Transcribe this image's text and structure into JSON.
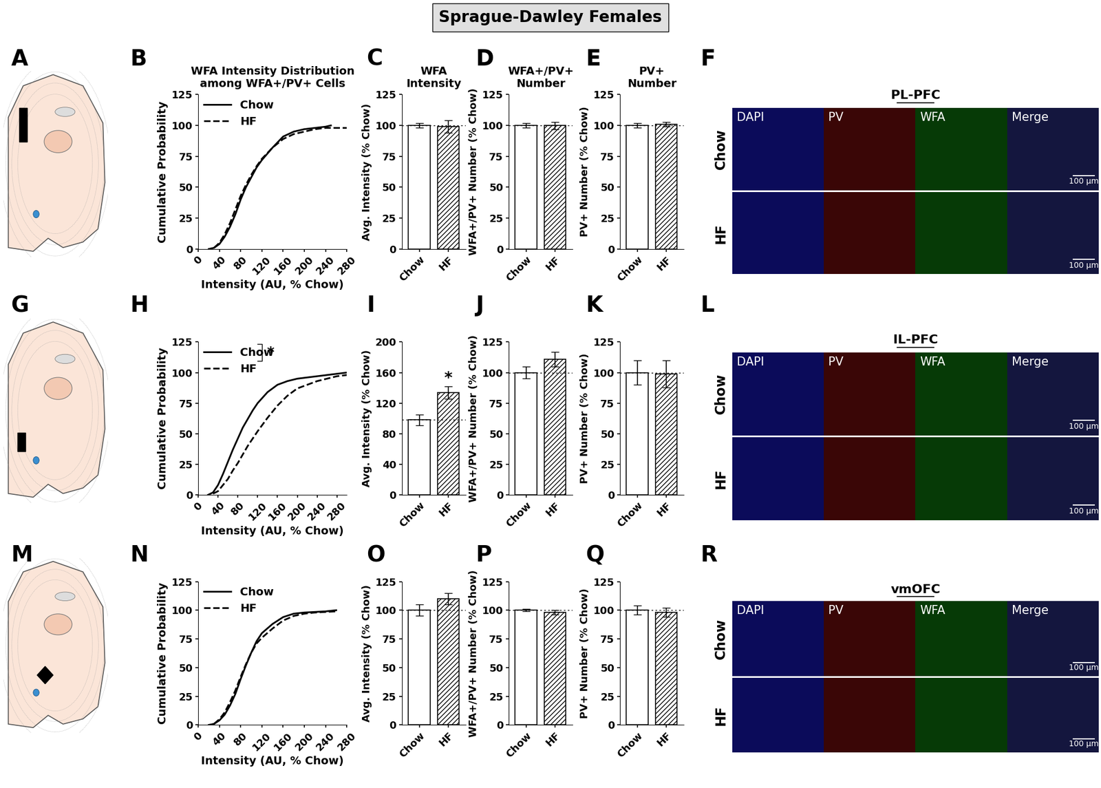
{
  "title": "Sprague-Dawley Females",
  "chart_data": [
    {
      "panel": "B",
      "type": "line",
      "title": "WFA Intensity Distribution\namong WFA+/PV+ Cells",
      "x_label": "Intensity (AU, % Chow)",
      "y_label": "Cumulative Probability",
      "xlim": [
        0,
        280
      ],
      "xticks": [
        0,
        40,
        80,
        120,
        160,
        200,
        240,
        280
      ],
      "ylim": [
        0,
        125
      ],
      "yticks": [
        0,
        25,
        50,
        75,
        100,
        125
      ],
      "legend": "upper left",
      "series": [
        {
          "name": "Chow",
          "color": "#000000",
          "line_style": "solid",
          "x": [
            20,
            30,
            40,
            50,
            60,
            70,
            80,
            90,
            100,
            110,
            120,
            140,
            160,
            180,
            200,
            220,
            240,
            250
          ],
          "values": [
            0,
            1,
            4,
            10,
            18,
            28,
            40,
            50,
            58,
            66,
            72,
            82,
            91,
            95,
            97,
            98,
            99,
            100
          ]
        },
        {
          "name": "HF",
          "color": "#000000",
          "line_style": "dashed",
          "x": [
            30,
            40,
            50,
            60,
            70,
            80,
            90,
            100,
            110,
            120,
            140,
            160,
            180,
            200,
            220,
            240,
            280
          ],
          "values": [
            1,
            5,
            12,
            21,
            32,
            43,
            52,
            60,
            67,
            73,
            82,
            89,
            93,
            95,
            97,
            98,
            98
          ]
        }
      ]
    },
    {
      "panel": "C",
      "type": "bar",
      "title": "WFA\nIntensity",
      "y_label": "Avg. Intensity (% Chow)",
      "categories": [
        "Chow",
        "HF"
      ],
      "values": [
        100,
        99
      ],
      "errors": [
        2,
        5
      ],
      "colors": [
        "#ffffff",
        "#ffffff"
      ],
      "ylim": [
        0,
        125
      ],
      "yticks": [
        0,
        25,
        50,
        75,
        100,
        125
      ],
      "reference_line": 100
    },
    {
      "panel": "D",
      "type": "bar",
      "title": "WFA+/PV+\nNumber",
      "y_label": "WFA+/PV+ Number (% Chow)",
      "categories": [
        "Chow",
        "HF"
      ],
      "values": [
        100,
        100
      ],
      "errors": [
        2,
        3
      ],
      "colors": [
        "#ffffff",
        "#ffffff"
      ],
      "ylim": [
        0,
        125
      ],
      "yticks": [
        0,
        25,
        50,
        75,
        100,
        125
      ],
      "reference_line": 100
    },
    {
      "panel": "E",
      "type": "bar",
      "title": "PV+\nNumber",
      "y_label": "PV+ Number (% Chow)",
      "categories": [
        "Chow",
        "HF"
      ],
      "values": [
        100,
        101
      ],
      "errors": [
        2,
        2
      ],
      "colors": [
        "#ffffff",
        "#ffffff"
      ],
      "ylim": [
        0,
        125
      ],
      "yticks": [
        0,
        25,
        50,
        75,
        100,
        125
      ],
      "reference_line": 100
    },
    {
      "panel": "H",
      "type": "line",
      "x_label": "Intensity (AU, % Chow)",
      "y_label": "Cumulative Probability",
      "xlim": [
        0,
        300
      ],
      "xticks": [
        0,
        40,
        80,
        120,
        160,
        200,
        240,
        280
      ],
      "ylim": [
        0,
        125
      ],
      "yticks": [
        0,
        25,
        50,
        75,
        100,
        125
      ],
      "legend": "upper left",
      "annotation": "*",
      "series": [
        {
          "name": "Chow",
          "color": "#000000",
          "line_style": "solid",
          "x": [
            20,
            30,
            40,
            50,
            60,
            70,
            80,
            90,
            100,
            110,
            120,
            140,
            160,
            180,
            200,
            240,
            280,
            300
          ],
          "values": [
            0,
            2,
            8,
            17,
            27,
            37,
            46,
            55,
            62,
            69,
            75,
            84,
            90,
            93,
            95,
            97,
            99,
            100
          ]
        },
        {
          "name": "HF",
          "color": "#000000",
          "line_style": "dashed",
          "x": [
            30,
            40,
            50,
            60,
            70,
            80,
            90,
            100,
            110,
            120,
            140,
            160,
            180,
            200,
            220,
            240,
            260,
            280,
            300
          ],
          "values": [
            1,
            3,
            8,
            13,
            20,
            26,
            33,
            40,
            46,
            52,
            63,
            73,
            81,
            87,
            90,
            93,
            95,
            97,
            98
          ]
        }
      ]
    },
    {
      "panel": "I",
      "type": "bar",
      "y_label": "Avg. Intensity (% Chow)",
      "categories": [
        "Chow",
        "HF"
      ],
      "values": [
        98,
        134
      ],
      "errors": [
        7,
        8
      ],
      "colors": [
        "#ffffff",
        "#ffffff"
      ],
      "ylim": [
        0,
        200
      ],
      "yticks": [
        0,
        40,
        80,
        120,
        160,
        200
      ],
      "reference_line": 98,
      "annotation": {
        "category": "HF",
        "text": "*"
      }
    },
    {
      "panel": "J",
      "type": "bar",
      "y_label": "WFA+/PV+ Number (% Chow)",
      "categories": [
        "Chow",
        "HF"
      ],
      "values": [
        100,
        111
      ],
      "errors": [
        5,
        6
      ],
      "colors": [
        "#ffffff",
        "#ffffff"
      ],
      "ylim": [
        0,
        125
      ],
      "yticks": [
        0,
        25,
        50,
        75,
        100,
        125
      ],
      "reference_line": 100
    },
    {
      "panel": "K",
      "type": "bar",
      "y_label": "PV+ Number (% Chow)",
      "categories": [
        "Chow",
        "HF"
      ],
      "values": [
        100,
        99
      ],
      "errors": [
        10,
        11
      ],
      "colors": [
        "#ffffff",
        "#ffffff"
      ],
      "ylim": [
        0,
        125
      ],
      "yticks": [
        0,
        25,
        50,
        75,
        100,
        125
      ],
      "reference_line": 100
    },
    {
      "panel": "N",
      "type": "line",
      "x_label": "Intensity (AU, % Chow)",
      "y_label": "Cumulative Probability",
      "xlim": [
        0,
        280
      ],
      "xticks": [
        0,
        40,
        80,
        120,
        160,
        200,
        240,
        280
      ],
      "ylim": [
        0,
        125
      ],
      "yticks": [
        0,
        25,
        50,
        75,
        100,
        125
      ],
      "legend": "upper left",
      "series": [
        {
          "name": "Chow",
          "color": "#000000",
          "line_style": "solid",
          "x": [
            20,
            30,
            40,
            50,
            60,
            70,
            80,
            90,
            100,
            110,
            120,
            140,
            160,
            180,
            200,
            240,
            260
          ],
          "values": [
            0,
            1,
            4,
            9,
            17,
            27,
            40,
            52,
            63,
            73,
            80,
            88,
            94,
            97,
            98,
            99,
            100
          ]
        },
        {
          "name": "HF",
          "color": "#000000",
          "line_style": "dashed",
          "x": [
            30,
            40,
            50,
            60,
            70,
            80,
            90,
            100,
            110,
            120,
            140,
            160,
            180,
            200,
            220,
            260
          ],
          "values": [
            1,
            5,
            11,
            20,
            30,
            42,
            53,
            63,
            71,
            76,
            84,
            91,
            95,
            97,
            98,
            99
          ]
        }
      ]
    },
    {
      "panel": "O",
      "type": "bar",
      "y_label": "Avg. Intensity (% Chow)",
      "categories": [
        "Chow",
        "HF"
      ],
      "values": [
        100,
        110
      ],
      "errors": [
        5,
        5
      ],
      "colors": [
        "#ffffff",
        "#ffffff"
      ],
      "ylim": [
        0,
        125
      ],
      "yticks": [
        0,
        25,
        50,
        75,
        100,
        125
      ],
      "reference_line": 100
    },
    {
      "panel": "P",
      "type": "bar",
      "y_label": "WFA+/PV+ Number (% Chow)",
      "categories": [
        "Chow",
        "HF"
      ],
      "values": [
        100,
        98
      ],
      "errors": [
        1,
        2
      ],
      "colors": [
        "#ffffff",
        "#ffffff"
      ],
      "ylim": [
        0,
        125
      ],
      "yticks": [
        0,
        25,
        50,
        75,
        100,
        125
      ],
      "reference_line": 100
    },
    {
      "panel": "Q",
      "type": "bar",
      "y_label": "PV+ Number (% Chow)",
      "categories": [
        "Chow",
        "HF"
      ],
      "values": [
        100,
        98
      ],
      "errors": [
        4,
        4
      ],
      "colors": [
        "#ffffff",
        "#ffffff"
      ],
      "ylim": [
        0,
        125
      ],
      "yticks": [
        0,
        25,
        50,
        75,
        100,
        125
      ],
      "reference_line": 100
    }
  ],
  "schematics": [
    {
      "panel": "A"
    },
    {
      "panel": "G"
    },
    {
      "panel": "M"
    }
  ],
  "images": [
    {
      "panel": "F",
      "title": "PL-PFC"
    },
    {
      "panel": "L",
      "title": "IL-PFC"
    },
    {
      "panel": "R",
      "title": "vmOFC"
    }
  ],
  "channels": [
    "DAPI",
    "PV",
    "WFA",
    "Merge"
  ],
  "groups": [
    "Chow",
    "HF"
  ],
  "scale_bar": "100 µm"
}
